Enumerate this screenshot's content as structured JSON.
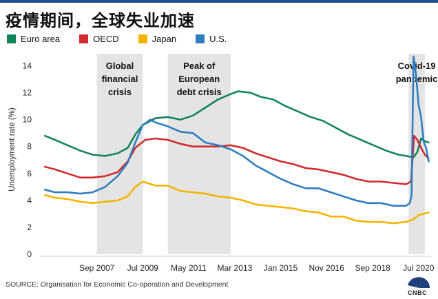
{
  "header": {
    "title": "疫情期间，全球失业加速"
  },
  "source_text": "SOURCE: Organisation for Economic Co-operation and Development",
  "brand": {
    "logo_text": "CNBC",
    "logo_icon": "nbc-peacock-icon"
  },
  "colors": {
    "euro": "#13855a",
    "oecd": "#d02b2f",
    "japan": "#f5b400",
    "us": "#2f7dc0",
    "shade": "#e4e4e4"
  },
  "chart_data": {
    "type": "line",
    "title": "疫情期间，全球失业加速",
    "xlabel": "",
    "ylabel": "Unemployment rate (%)",
    "ylim": [
      0,
      15
    ],
    "xlim": [
      2005.4,
      2021.0
    ],
    "yticks": [
      0,
      2,
      4,
      6,
      8,
      10,
      12,
      14
    ],
    "grid": false,
    "legend": "top-left",
    "xtick_labels": [
      {
        "label": "Sep 2007",
        "x": 2007.67
      },
      {
        "label": "Jul 2009",
        "x": 2009.5
      },
      {
        "label": "May 2011",
        "x": 2011.33
      },
      {
        "label": "Mar 2013",
        "x": 2013.17
      },
      {
        "label": "Jan 2015",
        "x": 2015.0
      },
      {
        "label": "Nov 2016",
        "x": 2016.83
      },
      {
        "label": "Sep 2018",
        "x": 2018.67
      },
      {
        "label": "Jul 2020",
        "x": 2020.5
      }
    ],
    "shaded_regions": [
      {
        "label": "Global\nfinancial\ncrisis",
        "x0": 2007.67,
        "x1": 2009.5
      },
      {
        "label": "Peak of\nEuropean\ndebt crisis",
        "x0": 2010.5,
        "x1": 2013.0
      },
      {
        "label": "Covid-19\npandemic",
        "x0": 2020.1,
        "x1": 2020.75
      }
    ],
    "series": [
      {
        "name": "Euro area",
        "color": "#13855a",
        "points": [
          [
            2005.6,
            8.8
          ],
          [
            2006.0,
            8.5
          ],
          [
            2006.5,
            8.1
          ],
          [
            2007.0,
            7.7
          ],
          [
            2007.5,
            7.4
          ],
          [
            2008.0,
            7.3
          ],
          [
            2008.5,
            7.5
          ],
          [
            2008.9,
            7.9
          ],
          [
            2009.2,
            8.9
          ],
          [
            2009.5,
            9.6
          ],
          [
            2010.0,
            10.1
          ],
          [
            2010.5,
            10.2
          ],
          [
            2011.0,
            10.0
          ],
          [
            2011.5,
            10.3
          ],
          [
            2012.0,
            10.9
          ],
          [
            2012.5,
            11.5
          ],
          [
            2013.0,
            11.9
          ],
          [
            2013.3,
            12.1
          ],
          [
            2013.8,
            12.0
          ],
          [
            2014.2,
            11.7
          ],
          [
            2014.7,
            11.5
          ],
          [
            2015.2,
            11.0
          ],
          [
            2015.7,
            10.6
          ],
          [
            2016.2,
            10.2
          ],
          [
            2016.7,
            9.9
          ],
          [
            2017.2,
            9.4
          ],
          [
            2017.7,
            8.9
          ],
          [
            2018.2,
            8.5
          ],
          [
            2018.7,
            8.1
          ],
          [
            2019.2,
            7.7
          ],
          [
            2019.7,
            7.4
          ],
          [
            2020.0,
            7.3
          ],
          [
            2020.3,
            7.2
          ],
          [
            2020.45,
            7.6
          ],
          [
            2020.6,
            8.6
          ],
          [
            2020.75,
            8.4
          ],
          [
            2020.9,
            8.3
          ]
        ]
      },
      {
        "name": "OECD",
        "color": "#d02b2f",
        "points": [
          [
            2005.6,
            6.5
          ],
          [
            2006.0,
            6.3
          ],
          [
            2006.5,
            6.0
          ],
          [
            2007.0,
            5.7
          ],
          [
            2007.5,
            5.7
          ],
          [
            2008.0,
            5.8
          ],
          [
            2008.5,
            6.1
          ],
          [
            2008.9,
            6.9
          ],
          [
            2009.2,
            7.9
          ],
          [
            2009.6,
            8.5
          ],
          [
            2010.0,
            8.6
          ],
          [
            2010.5,
            8.5
          ],
          [
            2011.0,
            8.2
          ],
          [
            2011.5,
            8.0
          ],
          [
            2012.0,
            8.0
          ],
          [
            2012.5,
            8.0
          ],
          [
            2013.0,
            8.1
          ],
          [
            2013.5,
            7.9
          ],
          [
            2014.0,
            7.5
          ],
          [
            2014.5,
            7.2
          ],
          [
            2015.0,
            6.9
          ],
          [
            2015.5,
            6.7
          ],
          [
            2016.0,
            6.4
          ],
          [
            2016.5,
            6.3
          ],
          [
            2017.0,
            6.1
          ],
          [
            2017.5,
            5.9
          ],
          [
            2018.0,
            5.6
          ],
          [
            2018.5,
            5.4
          ],
          [
            2019.0,
            5.4
          ],
          [
            2019.5,
            5.3
          ],
          [
            2020.0,
            5.2
          ],
          [
            2020.2,
            5.4
          ],
          [
            2020.32,
            8.8
          ],
          [
            2020.45,
            8.5
          ],
          [
            2020.6,
            7.9
          ],
          [
            2020.75,
            7.4
          ],
          [
            2020.9,
            7.1
          ]
        ]
      },
      {
        "name": "Japan",
        "color": "#f5b400",
        "points": [
          [
            2005.6,
            4.4
          ],
          [
            2006.0,
            4.2
          ],
          [
            2006.5,
            4.1
          ],
          [
            2007.0,
            3.9
          ],
          [
            2007.5,
            3.8
          ],
          [
            2008.0,
            3.9
          ],
          [
            2008.5,
            4.0
          ],
          [
            2008.9,
            4.3
          ],
          [
            2009.2,
            5.0
          ],
          [
            2009.5,
            5.4
          ],
          [
            2010.0,
            5.1
          ],
          [
            2010.5,
            5.1
          ],
          [
            2011.0,
            4.7
          ],
          [
            2011.5,
            4.6
          ],
          [
            2012.0,
            4.5
          ],
          [
            2012.5,
            4.3
          ],
          [
            2013.0,
            4.2
          ],
          [
            2013.5,
            4.0
          ],
          [
            2014.0,
            3.7
          ],
          [
            2014.5,
            3.6
          ],
          [
            2015.0,
            3.5
          ],
          [
            2015.5,
            3.4
          ],
          [
            2016.0,
            3.2
          ],
          [
            2016.5,
            3.1
          ],
          [
            2017.0,
            2.8
          ],
          [
            2017.5,
            2.8
          ],
          [
            2018.0,
            2.5
          ],
          [
            2018.5,
            2.4
          ],
          [
            2019.0,
            2.4
          ],
          [
            2019.5,
            2.3
          ],
          [
            2020.0,
            2.4
          ],
          [
            2020.3,
            2.6
          ],
          [
            2020.5,
            2.9
          ],
          [
            2020.9,
            3.1
          ]
        ]
      },
      {
        "name": "U.S.",
        "color": "#2f7dc0",
        "points": [
          [
            2005.6,
            4.8
          ],
          [
            2006.0,
            4.6
          ],
          [
            2006.5,
            4.6
          ],
          [
            2007.0,
            4.5
          ],
          [
            2007.5,
            4.6
          ],
          [
            2008.0,
            5.0
          ],
          [
            2008.5,
            5.8
          ],
          [
            2008.9,
            6.8
          ],
          [
            2009.2,
            8.3
          ],
          [
            2009.5,
            9.6
          ],
          [
            2009.8,
            10.0
          ],
          [
            2010.0,
            9.8
          ],
          [
            2010.5,
            9.5
          ],
          [
            2011.0,
            9.1
          ],
          [
            2011.5,
            9.0
          ],
          [
            2012.0,
            8.3
          ],
          [
            2012.5,
            8.1
          ],
          [
            2013.0,
            7.8
          ],
          [
            2013.5,
            7.3
          ],
          [
            2014.0,
            6.6
          ],
          [
            2014.5,
            6.1
          ],
          [
            2015.0,
            5.6
          ],
          [
            2015.5,
            5.2
          ],
          [
            2016.0,
            4.9
          ],
          [
            2016.5,
            4.9
          ],
          [
            2017.0,
            4.6
          ],
          [
            2017.5,
            4.3
          ],
          [
            2018.0,
            4.0
          ],
          [
            2018.5,
            3.8
          ],
          [
            2019.0,
            3.8
          ],
          [
            2019.5,
            3.6
          ],
          [
            2020.0,
            3.6
          ],
          [
            2020.15,
            3.8
          ],
          [
            2020.22,
            4.4
          ],
          [
            2020.3,
            14.7
          ],
          [
            2020.4,
            13.3
          ],
          [
            2020.5,
            11.1
          ],
          [
            2020.6,
            10.2
          ],
          [
            2020.7,
            8.4
          ],
          [
            2020.8,
            7.9
          ],
          [
            2020.9,
            6.9
          ]
        ]
      }
    ]
  }
}
